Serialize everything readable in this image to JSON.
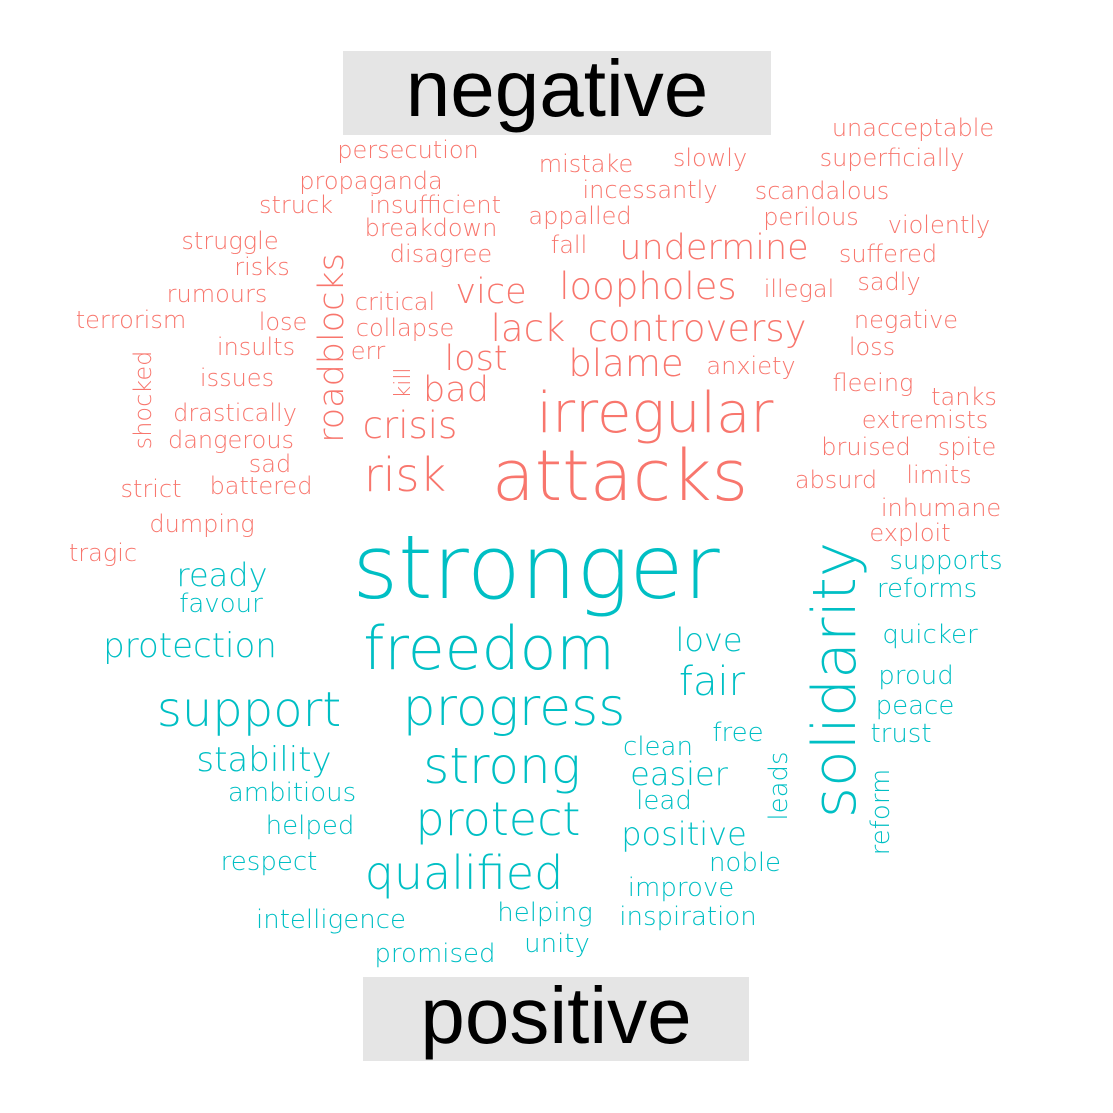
{
  "chart_data": {
    "type": "wordcloud",
    "groups": [
      {
        "name": "negative",
        "color": "#F8766D",
        "words": [
          "attacks",
          "irregular",
          "risk",
          "lack",
          "controversy",
          "undermine",
          "loopholes",
          "crisis",
          "blame",
          "lost",
          "vice",
          "roadblocks",
          "bad",
          "collapse",
          "err",
          "kill",
          "critical",
          "lose",
          "anxiety",
          "illegal",
          "fall",
          "disagree",
          "breakdown",
          "appalled",
          "insufficient",
          "struck",
          "propaganda",
          "persecution",
          "mistake",
          "slowly",
          "incessantly",
          "scandalous",
          "perilous",
          "unacceptable",
          "superficially",
          "violently",
          "suffered",
          "sadly",
          "negative",
          "loss",
          "fleeing",
          "tanks",
          "extremists",
          "bruised",
          "spite",
          "limits",
          "absurd",
          "inhumane",
          "exploit",
          "struggle",
          "risks",
          "rumours",
          "terrorism",
          "insults",
          "issues",
          "shocked",
          "drastically",
          "dangerous",
          "sad",
          "strict",
          "battered",
          "dumping",
          "tragic"
        ]
      },
      {
        "name": "positive",
        "color": "#00BFC4",
        "words": [
          "stronger",
          "freedom",
          "solidarity",
          "progress",
          "support",
          "strong",
          "protect",
          "qualified",
          "fair",
          "love",
          "protection",
          "ready",
          "favour",
          "stability",
          "ambitious",
          "helped",
          "respect",
          "intelligence",
          "promised",
          "unity",
          "helping",
          "inspiration",
          "improve",
          "noble",
          "positive",
          "easier",
          "lead",
          "clean",
          "free",
          "leads",
          "reform",
          "trust",
          "peace",
          "proud",
          "quicker",
          "reforms",
          "supports"
        ]
      }
    ]
  }
}
